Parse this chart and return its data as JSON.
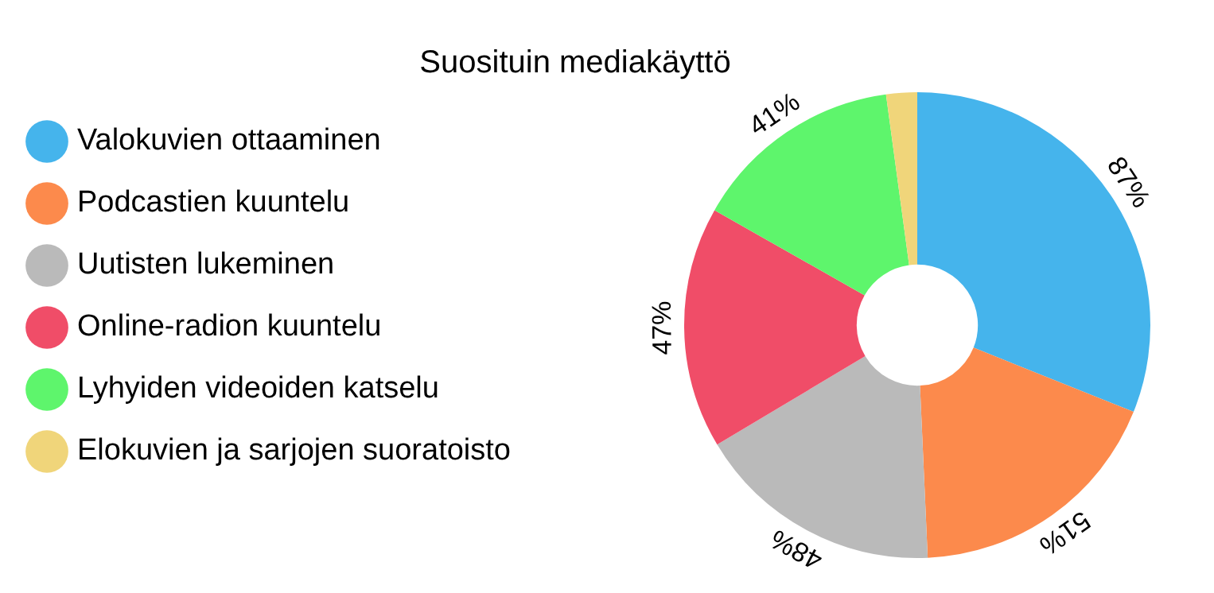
{
  "chart_data": {
    "type": "donut",
    "title": "Suosituin mediakäyttö",
    "categories": [
      "Valokuvien ottaaminen",
      "Podcastien kuuntelu",
      "Uutisten lukeminen",
      "Online-radion kuuntelu",
      "Lyhyiden videoiden katselu",
      "Elokuvien ja sarjojen suoratoisto"
    ],
    "values": [
      87,
      51,
      48,
      47,
      41,
      6
    ],
    "value_labels": [
      "87%",
      "51%",
      "48%",
      "47%",
      "41%",
      null
    ],
    "colors": [
      "#45b4ec",
      "#fc8a4c",
      "#bababa",
      "#f04d68",
      "#5ef56c",
      "#f0d57a"
    ],
    "legend": "left"
  }
}
